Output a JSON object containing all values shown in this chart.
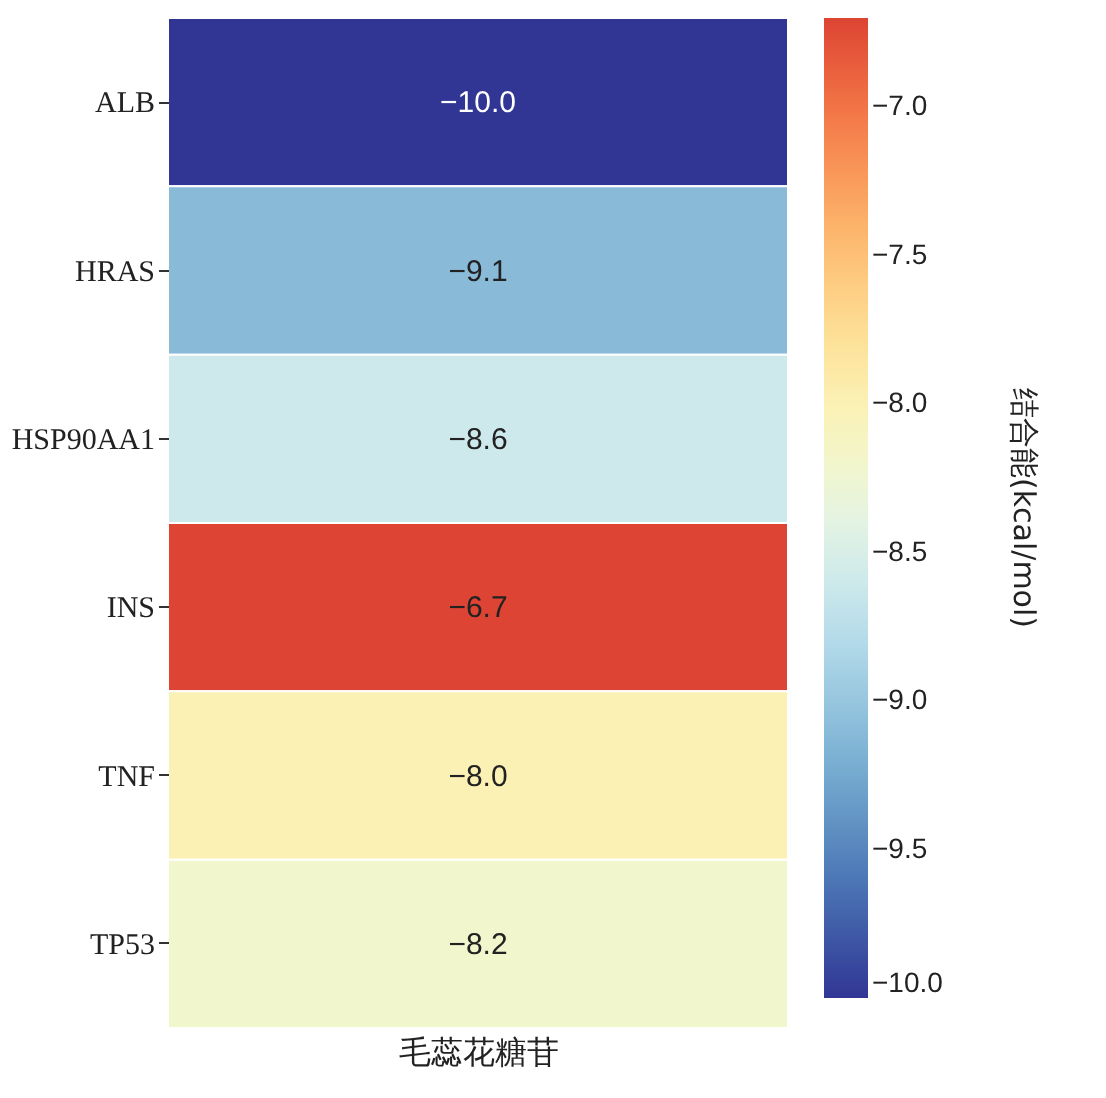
{
  "chart_data": {
    "type": "heatmap",
    "xlabel": "毛蕊花糖苷",
    "clabel": "结合能(kcal/mol)",
    "categories": [
      null
    ],
    "y_categories": [
      "ALB",
      "HRAS",
      "HSP90AA1",
      "INS",
      "TNF",
      "TP53"
    ],
    "cells": [
      [
        -10.0
      ],
      [
        -9.1
      ],
      [
        -8.6
      ],
      [
        -6.7
      ],
      [
        -8.0
      ],
      [
        -8.2
      ]
    ],
    "cell_labels": [
      [
        "−10.0"
      ],
      [
        "−9.1"
      ],
      [
        "−8.6"
      ],
      [
        "−6.7"
      ],
      [
        "−8.0"
      ],
      [
        "−8.2"
      ]
    ],
    "data_labels": true,
    "clim": [
      -10.0,
      -6.7
    ],
    "cticks": [
      {
        "value": -10,
        "label": "−10.0"
      },
      {
        "value": -9.5,
        "label": "−9.5"
      },
      {
        "value": -9,
        "label": "−9.0"
      },
      {
        "value": -8.5,
        "label": "−8.5"
      },
      {
        "value": -8,
        "label": "−8.0"
      },
      {
        "value": -7.5,
        "label": "−7.5"
      },
      {
        "value": -7,
        "label": "−7.0"
      }
    ]
  }
}
